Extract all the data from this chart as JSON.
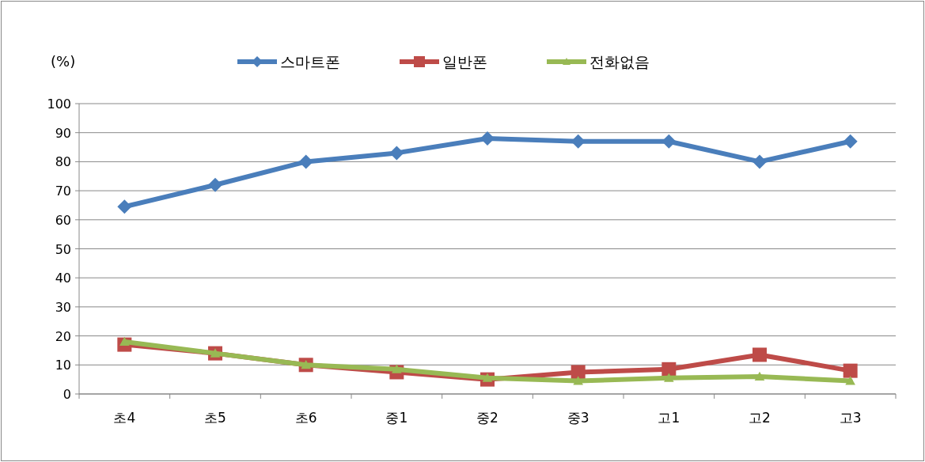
{
  "chart_data": {
    "type": "line",
    "ylabel": "(%)",
    "categories": [
      "초4",
      "초5",
      "초6",
      "중1",
      "중2",
      "중3",
      "고1",
      "고2",
      "고3"
    ],
    "series": [
      {
        "name": "스마트폰",
        "color": "#4a7ebb",
        "marker": "diamond",
        "values": [
          64.5,
          72,
          80,
          83,
          88,
          87,
          87,
          80,
          87
        ]
      },
      {
        "name": "일반폰",
        "color": "#be4b48",
        "marker": "square",
        "values": [
          17,
          14,
          10,
          7.5,
          5,
          7.5,
          8.5,
          13.5,
          8
        ]
      },
      {
        "name": "전화없음",
        "color": "#98b954",
        "marker": "triangle",
        "values": [
          18,
          14,
          10,
          8.5,
          5.5,
          4.5,
          5.5,
          6,
          4.5
        ]
      }
    ],
    "ylim": [
      0,
      100
    ],
    "yticks": [
      0,
      10,
      20,
      30,
      40,
      50,
      60,
      70,
      80,
      90,
      100
    ],
    "grid": "y",
    "legend": "top"
  }
}
